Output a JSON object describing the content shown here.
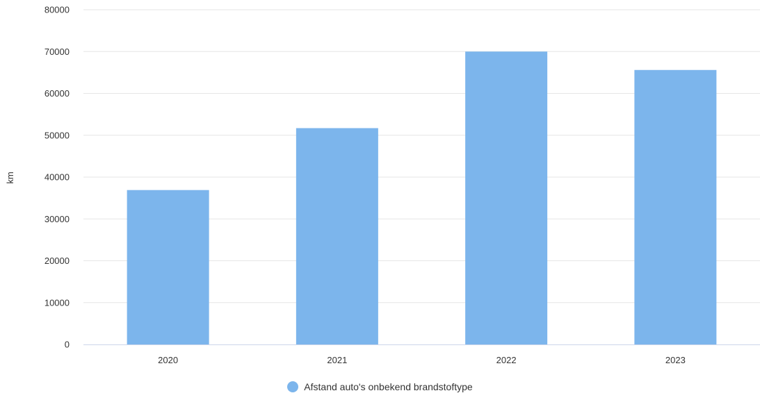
{
  "chart_data": {
    "type": "bar",
    "categories": [
      "2020",
      "2021",
      "2022",
      "2023"
    ],
    "series": [
      {
        "name": "Afstand auto's onbekend brandstoftype",
        "values": [
          36900,
          51700,
          70000,
          65600
        ],
        "color": "#7cb5ec"
      }
    ],
    "ylabel": "km",
    "ylim": [
      0,
      80000
    ],
    "yticks": [
      0,
      10000,
      20000,
      30000,
      40000,
      50000,
      60000,
      70000,
      80000
    ],
    "grid": true,
    "legend": "bottom-center",
    "colors": {
      "grid": "#e6e6e6",
      "axis": "#ccd6eb"
    }
  }
}
